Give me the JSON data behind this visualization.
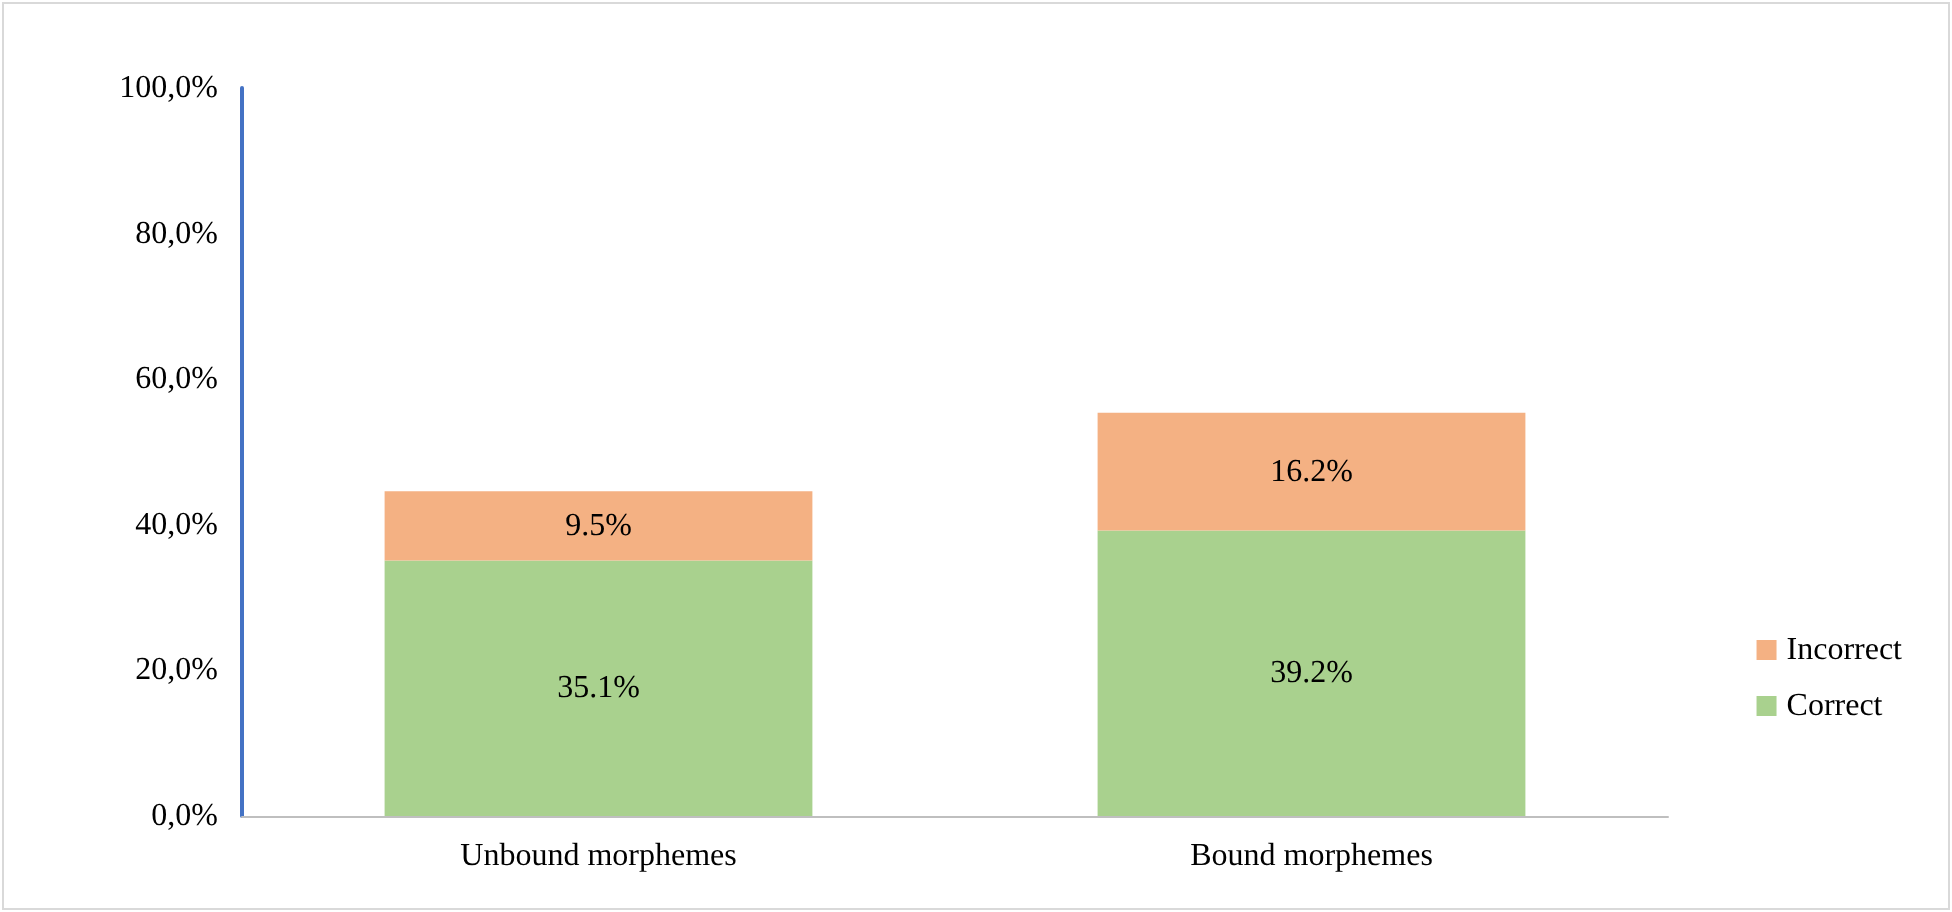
{
  "chart_data": {
    "type": "bar",
    "stacked": true,
    "categories": [
      "Unbound morphemes",
      "Bound morphemes"
    ],
    "series": [
      {
        "name": "Correct",
        "color": "#a9d18e",
        "values": [
          35.1,
          39.2
        ],
        "value_labels": [
          "35.1%",
          "39.2%"
        ]
      },
      {
        "name": "Incorrect",
        "color": "#f4b183",
        "values": [
          9.5,
          16.2
        ],
        "value_labels": [
          "9.5%",
          "16.2%"
        ]
      }
    ],
    "ylim": [
      0,
      100
    ],
    "yticks": [
      {
        "value": 0,
        "label": "0,0%"
      },
      {
        "value": 20,
        "label": "20,0%"
      },
      {
        "value": 40,
        "label": "40,0%"
      },
      {
        "value": 60,
        "label": "60,0%"
      },
      {
        "value": 80,
        "label": "80,0%"
      },
      {
        "value": 100,
        "label": "100,0%"
      }
    ],
    "grid": false,
    "legend": "right"
  }
}
